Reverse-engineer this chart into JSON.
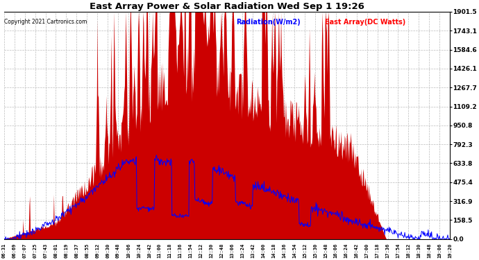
{
  "title": "East Array Power & Solar Radiation Wed Sep 1 19:26",
  "copyright_text": "Copyright 2021 Cartronics.com",
  "legend_radiation": "Radiation(W/m2)",
  "legend_east_array": "East Array(DC Watts)",
  "legend_radiation_color": "blue",
  "legend_east_array_color": "red",
  "yticks": [
    0.0,
    158.5,
    316.9,
    475.4,
    633.8,
    792.3,
    950.8,
    1109.2,
    1267.7,
    1426.1,
    1584.6,
    1743.1,
    1901.5
  ],
  "ymax": 1901.5,
  "ymin": 0.0,
  "background_color": "#ffffff",
  "plot_background": "#ffffff",
  "grid_color": "#bbbbbb",
  "fill_color_east": "#cc0000",
  "line_color_radiation": "blue",
  "title_fontsize": 10,
  "xtick_labels": [
    "06:31",
    "06:69",
    "07:07",
    "07:25",
    "07:43",
    "08:01",
    "08:19",
    "08:37",
    "08:55",
    "09:12",
    "09:30",
    "09:48",
    "10:06",
    "10:24",
    "10:42",
    "11:00",
    "11:18",
    "11:36",
    "11:54",
    "12:12",
    "12:30",
    "12:48",
    "13:06",
    "13:24",
    "13:42",
    "14:00",
    "14:18",
    "14:36",
    "14:54",
    "15:12",
    "15:30",
    "15:48",
    "16:06",
    "16:24",
    "16:42",
    "17:00",
    "17:18",
    "17:36",
    "17:54",
    "18:12",
    "18:30",
    "18:48",
    "19:06",
    "19:20"
  ]
}
